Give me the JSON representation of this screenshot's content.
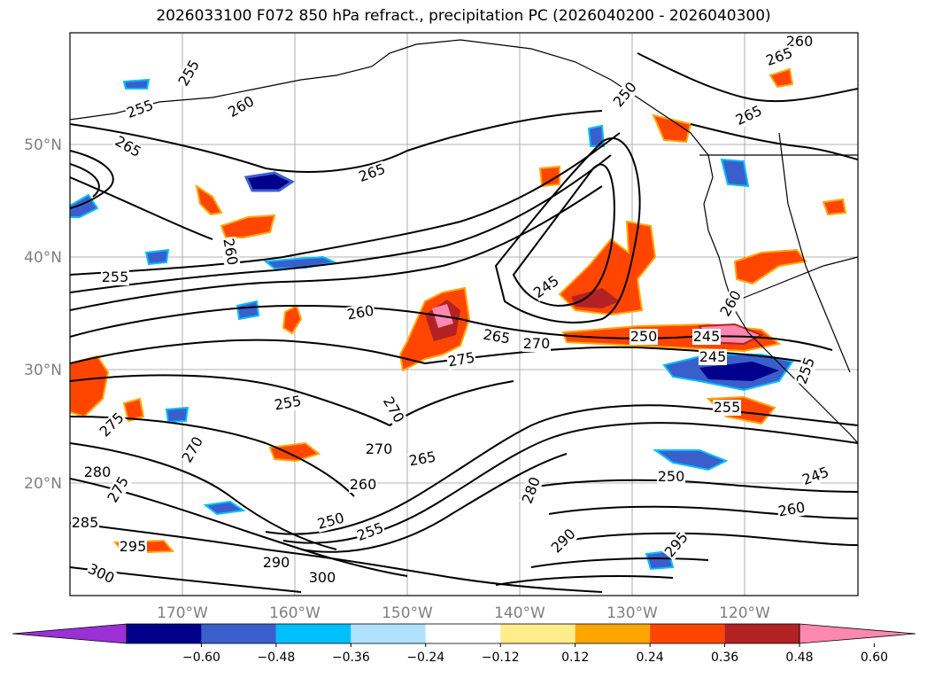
{
  "title": "2026033100 F072 850 hPa refract., precipitation PC (2026040200 - 2026040300)",
  "map": {
    "lat_labels": [
      "50°N",
      "40°N",
      "30°N",
      "20°N"
    ],
    "lon_labels": [
      "170°W",
      "160°W",
      "150°W",
      "140°W",
      "130°W",
      "120°W"
    ],
    "contour_labels": [
      {
        "text": "255"
      },
      {
        "text": "255"
      },
      {
        "text": "260"
      },
      {
        "text": "265"
      },
      {
        "text": "265"
      },
      {
        "text": "260"
      },
      {
        "text": "255"
      },
      {
        "text": "260"
      },
      {
        "text": "245"
      },
      {
        "text": "265"
      },
      {
        "text": "270"
      },
      {
        "text": "250"
      },
      {
        "text": "245"
      },
      {
        "text": "275"
      },
      {
        "text": "255"
      },
      {
        "text": "270"
      },
      {
        "text": "275"
      },
      {
        "text": "270"
      },
      {
        "text": "270"
      },
      {
        "text": "265"
      },
      {
        "text": "280"
      },
      {
        "text": "275"
      },
      {
        "text": "260"
      },
      {
        "text": "250"
      },
      {
        "text": "255"
      },
      {
        "text": "290"
      },
      {
        "text": "300"
      },
      {
        "text": "295"
      },
      {
        "text": "300"
      },
      {
        "text": "285"
      },
      {
        "text": "280"
      },
      {
        "text": "290"
      },
      {
        "text": "295"
      },
      {
        "text": "250"
      },
      {
        "text": "260"
      },
      {
        "text": "245"
      },
      {
        "text": "260"
      },
      {
        "text": "265"
      },
      {
        "text": "265"
      },
      {
        "text": "255"
      },
      {
        "text": "250"
      },
      {
        "text": "245"
      },
      {
        "text": "260"
      },
      {
        "text": "255"
      }
    ]
  },
  "colorbar": {
    "ticks": [
      "−0.60",
      "−0.48",
      "−0.36",
      "−0.24",
      "−0.12",
      "0.12",
      "0.24",
      "0.36",
      "0.48",
      "0.60"
    ],
    "colors": [
      "#9b30d6",
      "#00008b",
      "#3a5fcd",
      "#00bfff",
      "#b0e2ff",
      "#ffffff",
      "#ffec8b",
      "#ffa500",
      "#ff4500",
      "#b22222",
      "#ff88b0"
    ]
  },
  "colors": {
    "pos_light": "#ffec8b",
    "pos_mid": "#ffa500",
    "pos_high": "#ff4500",
    "pos_higher": "#b22222",
    "pos_max": "#ff88b0",
    "neg_light": "#b0e2ff",
    "neg_mid": "#00bfff",
    "neg_high": "#3a5fcd",
    "neg_higher": "#00008b"
  }
}
